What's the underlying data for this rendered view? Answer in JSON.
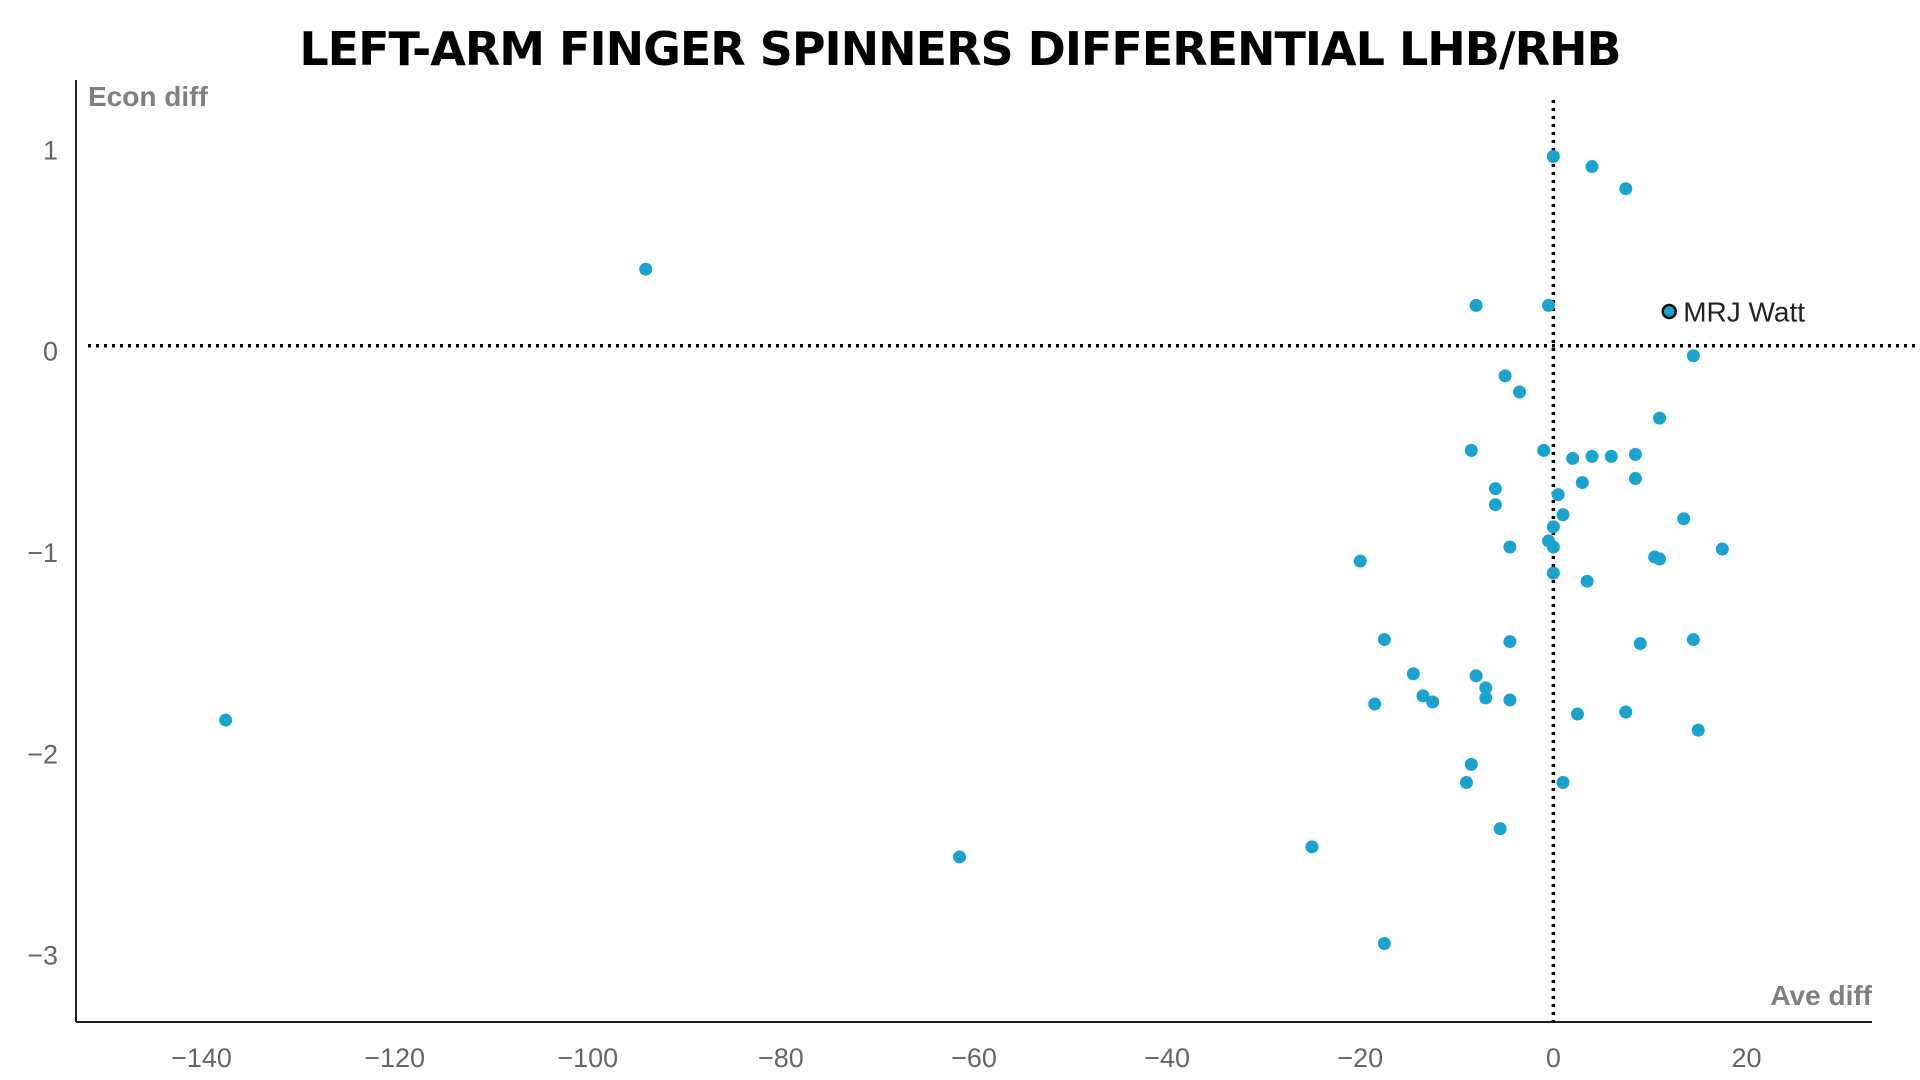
{
  "chart_data": {
    "type": "scatter",
    "title": "LEFT-ARM FINGER SPINNERS DIFFERENTIAL LHB/RHB",
    "xlabel": "Ave diff",
    "ylabel": "Econ diff",
    "xlim": [
      -153,
      33
    ],
    "ylim": [
      -3.33,
      1.35
    ],
    "x_ticks": [
      -140,
      -120,
      -100,
      -80,
      -60,
      -40,
      -20,
      0,
      20
    ],
    "y_ticks": [
      1,
      0,
      -1,
      -2,
      -3
    ],
    "x_tick_labels": [
      "−140",
      "−120",
      "−100",
      "−80",
      "−60",
      "−40",
      "−20",
      "0",
      "20"
    ],
    "y_tick_labels": [
      "1",
      "0",
      "−1",
      "−2",
      "−3"
    ],
    "reference_lines": {
      "x": 0,
      "y": 0.03,
      "style": "dotted"
    },
    "grid": false,
    "point_color": "#1AA3CF",
    "highlight_color": "#1AA3CF",
    "points": [
      {
        "x": -137.5,
        "y": -1.83
      },
      {
        "x": -94,
        "y": 0.41
      },
      {
        "x": -61.5,
        "y": -2.51
      },
      {
        "x": -25,
        "y": -2.46
      },
      {
        "x": -20,
        "y": -1.04
      },
      {
        "x": -17.5,
        "y": -1.43
      },
      {
        "x": -18.5,
        "y": -1.75
      },
      {
        "x": -17.5,
        "y": -2.94
      },
      {
        "x": -14.5,
        "y": -1.6
      },
      {
        "x": -13.5,
        "y": -1.71
      },
      {
        "x": -12.5,
        "y": -1.74
      },
      {
        "x": -8,
        "y": 0.23
      },
      {
        "x": -8.5,
        "y": -0.49
      },
      {
        "x": -8,
        "y": -1.61
      },
      {
        "x": -8.5,
        "y": -2.05
      },
      {
        "x": -9,
        "y": -2.14
      },
      {
        "x": -7,
        "y": -1.67
      },
      {
        "x": -7,
        "y": -1.72
      },
      {
        "x": -6,
        "y": -0.68
      },
      {
        "x": -6,
        "y": -0.76
      },
      {
        "x": -5.5,
        "y": -2.37
      },
      {
        "x": -5,
        "y": -0.12
      },
      {
        "x": -4.5,
        "y": -0.97
      },
      {
        "x": -4.5,
        "y": -1.44
      },
      {
        "x": -4.5,
        "y": -1.73
      },
      {
        "x": -3.5,
        "y": -0.2
      },
      {
        "x": -1,
        "y": -0.49
      },
      {
        "x": -0.5,
        "y": 0.23
      },
      {
        "x": -0.5,
        "y": -0.94
      },
      {
        "x": 0,
        "y": 0.97
      },
      {
        "x": 0,
        "y": -0.97
      },
      {
        "x": 0,
        "y": -1.1
      },
      {
        "x": 0,
        "y": -0.87
      },
      {
        "x": 0.5,
        "y": -0.71
      },
      {
        "x": 1,
        "y": -0.81
      },
      {
        "x": 1,
        "y": -2.14
      },
      {
        "x": 2,
        "y": -0.53
      },
      {
        "x": 2.5,
        "y": -1.8
      },
      {
        "x": 3,
        "y": -0.65
      },
      {
        "x": 3.5,
        "y": -1.14
      },
      {
        "x": 4,
        "y": 0.92
      },
      {
        "x": 4,
        "y": -0.52
      },
      {
        "x": 6,
        "y": -0.52
      },
      {
        "x": 7.5,
        "y": 0.81
      },
      {
        "x": 7.5,
        "y": -1.79
      },
      {
        "x": 8.5,
        "y": -0.51
      },
      {
        "x": 8.5,
        "y": -0.63
      },
      {
        "x": 9,
        "y": -1.45
      },
      {
        "x": 10.5,
        "y": -1.02
      },
      {
        "x": 11,
        "y": -1.03
      },
      {
        "x": 11,
        "y": -0.33
      },
      {
        "x": 13.5,
        "y": -0.83
      },
      {
        "x": 14.5,
        "y": -0.02
      },
      {
        "x": 14.5,
        "y": -1.43
      },
      {
        "x": 15,
        "y": -1.88
      },
      {
        "x": 17.5,
        "y": -0.98
      }
    ],
    "highlight": {
      "label": "MRJ Watt",
      "x": 12,
      "y": 0.2
    }
  }
}
